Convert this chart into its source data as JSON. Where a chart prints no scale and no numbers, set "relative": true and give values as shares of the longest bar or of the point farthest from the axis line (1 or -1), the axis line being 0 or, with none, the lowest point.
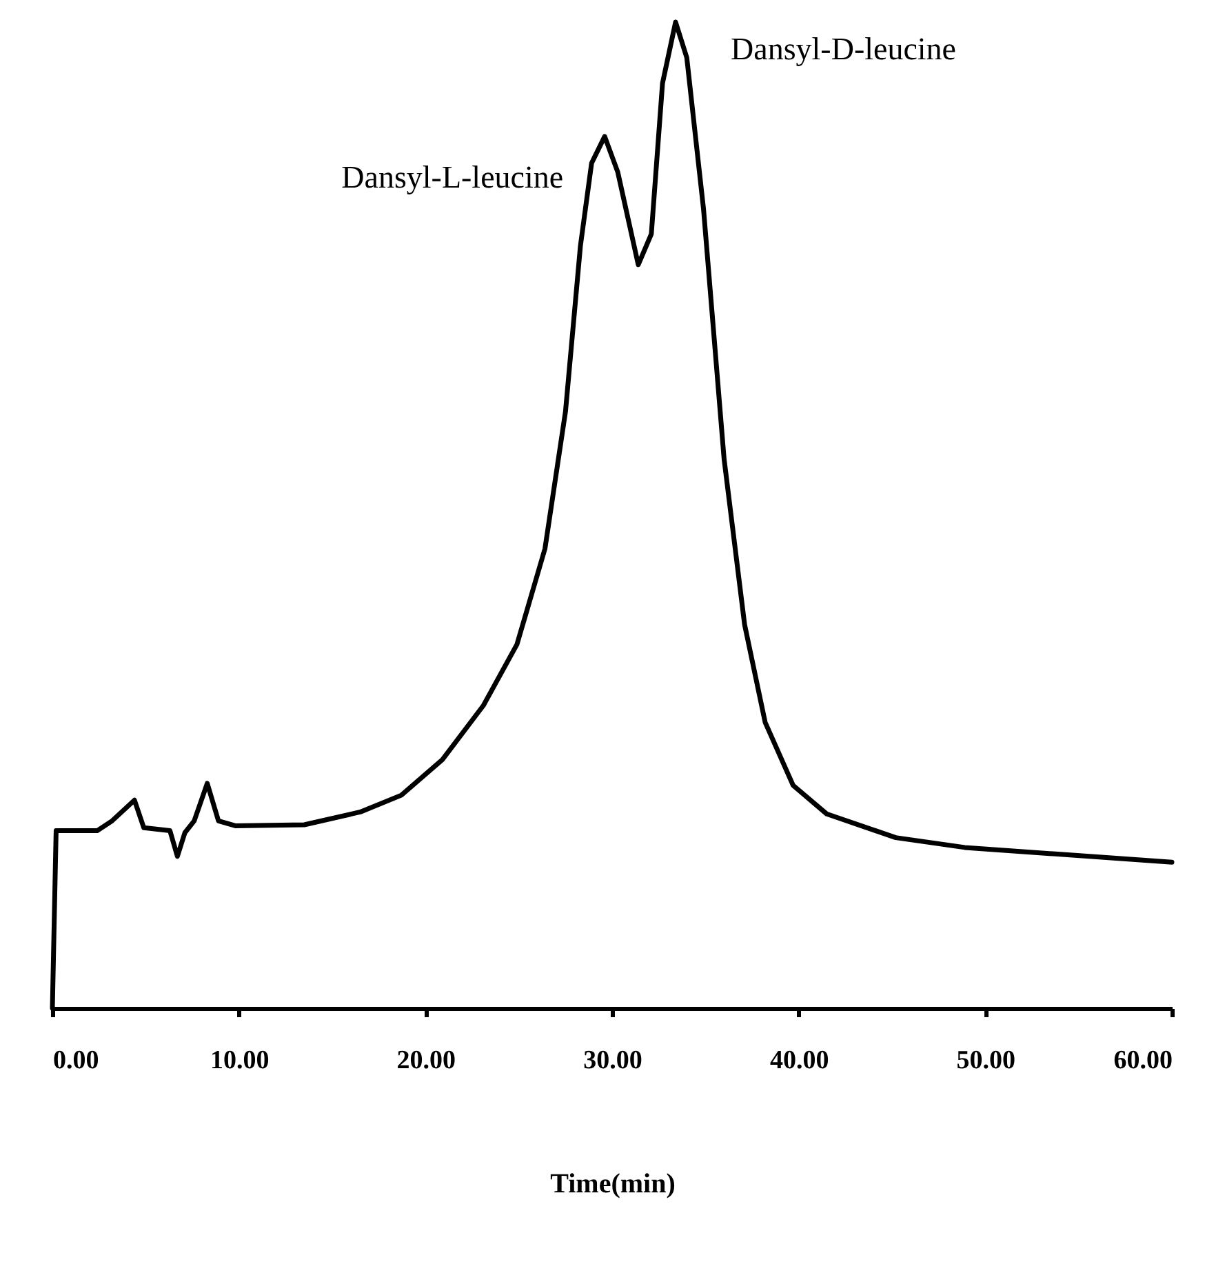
{
  "chart_data": {
    "type": "line",
    "relative": true,
    "xlabel": "Time(min)",
    "color": "#000000",
    "grid": false,
    "marker": "none",
    "line_style": "solid",
    "xlim": [
      0,
      60
    ],
    "xticks": [
      {
        "value": 0,
        "label": "0.00"
      },
      {
        "value": 10,
        "label": "10.00"
      },
      {
        "value": 20,
        "label": "20.00"
      },
      {
        "value": 30,
        "label": "30.00"
      },
      {
        "value": 40,
        "label": "40.00"
      },
      {
        "value": 50,
        "label": "50.00"
      },
      {
        "value": 60,
        "label": "60.00"
      }
    ],
    "x": [
      0,
      0.2,
      2.4,
      3.2,
      4.4,
      4.9,
      6.3,
      6.7,
      7.1,
      7.6,
      8.3,
      8.9,
      9.8,
      13.5,
      16.5,
      18.7,
      20.9,
      23.1,
      24.9,
      26.4,
      27.5,
      28.3,
      28.9,
      29.6,
      30.3,
      31.4,
      32.1,
      32.7,
      33.4,
      34.0,
      34.9,
      36.0,
      37.1,
      38.2,
      39.7,
      41.5,
      45.2,
      48.9,
      54.8,
      60
    ],
    "values": [
      0,
      0.18,
      0.18,
      0.19,
      0.211,
      0.183,
      0.18,
      0.154,
      0.178,
      0.19,
      0.228,
      0.19,
      0.185,
      0.186,
      0.199,
      0.216,
      0.252,
      0.307,
      0.369,
      0.466,
      0.605,
      0.773,
      0.857,
      0.884,
      0.848,
      0.754,
      0.785,
      0.938,
      1.0,
      0.964,
      0.81,
      0.557,
      0.389,
      0.29,
      0.226,
      0.197,
      0.173,
      0.163,
      0.155,
      0.148
    ],
    "annotations": [
      {
        "text": "Dansyl-L-leucine",
        "x": 29.6,
        "y": 0.884
      },
      {
        "text": "Dansyl-D-leucine",
        "x": 33.4,
        "y": 1.0
      }
    ]
  }
}
